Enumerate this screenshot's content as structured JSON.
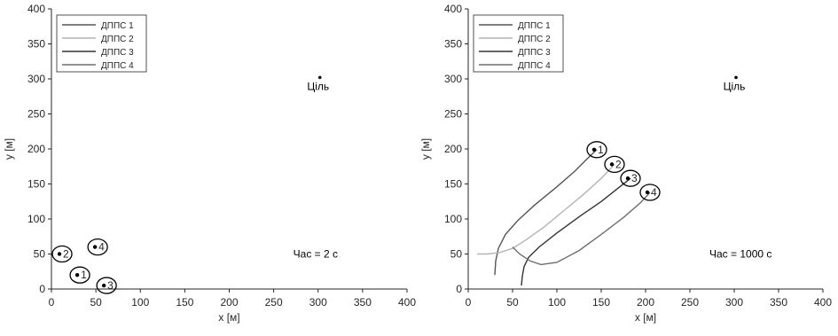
{
  "chart_data": [
    {
      "type": "line",
      "xlabel": "x [м]",
      "ylabel": "y [м]",
      "xlim": [
        0,
        400
      ],
      "ylim": [
        0,
        400
      ],
      "xticks": [
        "0",
        "50",
        "100",
        "150",
        "200",
        "250",
        "300",
        "350",
        "400"
      ],
      "yticks": [
        "0",
        "50",
        "100",
        "150",
        "200",
        "250",
        "300",
        "350",
        "400"
      ],
      "legend_position": "top-left",
      "series": [
        {
          "name": "ДППС 1",
          "color": "#555555",
          "x": [],
          "y": []
        },
        {
          "name": "ДППС 2",
          "color": "#b4b4b4",
          "x": [],
          "y": []
        },
        {
          "name": "ДППС 3",
          "color": "#333333",
          "x": [],
          "y": []
        },
        {
          "name": "ДППС 4",
          "color": "#6e6e6e",
          "x": [],
          "y": []
        }
      ],
      "agents": [
        {
          "label": "1",
          "x": 32,
          "y": 20
        },
        {
          "label": "2",
          "x": 12,
          "y": 50
        },
        {
          "label": "3",
          "x": 62,
          "y": 5
        },
        {
          "label": "4",
          "x": 52,
          "y": 60
        }
      ],
      "target": {
        "label": "Ціль",
        "x": 302,
        "y": 302
      },
      "time_annotation": "Час = 2 с"
    },
    {
      "type": "line",
      "xlabel": "x [м]",
      "ylabel": "y [м]",
      "xlim": [
        0,
        400
      ],
      "ylim": [
        0,
        400
      ],
      "xticks": [
        "0",
        "50",
        "100",
        "150",
        "200",
        "250",
        "300",
        "350",
        "400"
      ],
      "yticks": [
        "0",
        "50",
        "100",
        "150",
        "200",
        "250",
        "300",
        "350",
        "400"
      ],
      "legend_position": "top-left",
      "series": [
        {
          "name": "ДППС 1",
          "color": "#555555",
          "x": [
            30,
            31,
            34,
            42,
            56,
            75,
            100,
            120,
            135,
            145
          ],
          "y": [
            20,
            40,
            58,
            78,
            98,
            120,
            146,
            168,
            187,
            199
          ]
        },
        {
          "name": "ДППС 2",
          "color": "#b4b4b4",
          "x": [
            10,
            22,
            35,
            50,
            65,
            85,
            108,
            130,
            150,
            165
          ],
          "y": [
            50,
            50,
            52,
            58,
            70,
            88,
            112,
            135,
            158,
            178
          ]
        },
        {
          "name": "ДППС 3",
          "color": "#333333",
          "x": [
            60,
            61,
            63,
            68,
            80,
            100,
            125,
            150,
            170,
            183
          ],
          "y": [
            5,
            18,
            32,
            45,
            60,
            80,
            103,
            125,
            145,
            158
          ]
        },
        {
          "name": "ДППС 4",
          "color": "#6e6e6e",
          "x": [
            50,
            58,
            70,
            82,
            100,
            125,
            150,
            175,
            195,
            205
          ],
          "y": [
            60,
            50,
            40,
            35,
            38,
            55,
            78,
            102,
            124,
            138
          ]
        }
      ],
      "agents": [
        {
          "label": "1",
          "x": 145,
          "y": 199
        },
        {
          "label": "2",
          "x": 165,
          "y": 178
        },
        {
          "label": "3",
          "x": 183,
          "y": 158
        },
        {
          "label": "4",
          "x": 205,
          "y": 138
        }
      ],
      "target": {
        "label": "Ціль",
        "x": 302,
        "y": 302
      },
      "time_annotation": "Час = 1000 с"
    }
  ]
}
